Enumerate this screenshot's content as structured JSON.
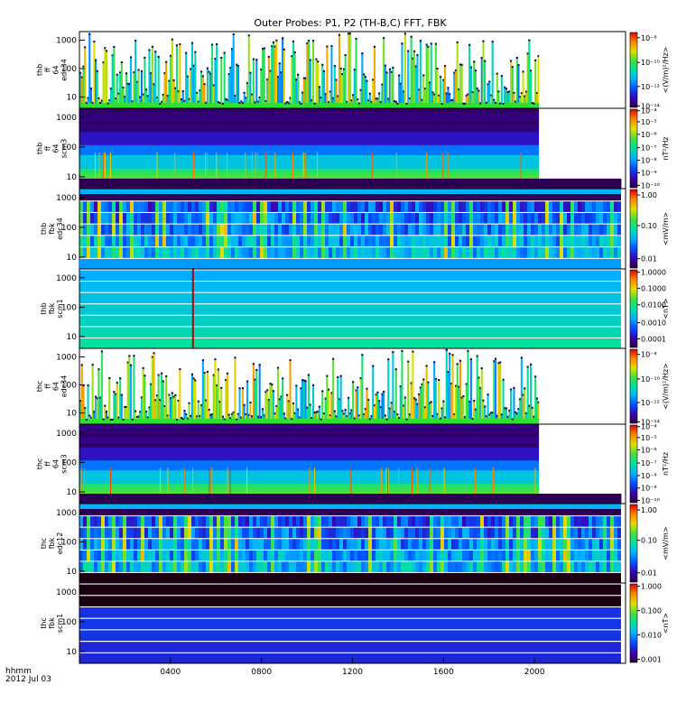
{
  "chart_data": {
    "type": "heatmap",
    "title": "Outer Probes: P1, P2 (TH-B,C) FFT, FBK",
    "xlabel": "hhmm",
    "date": "2012 Jul 03",
    "x_ticks": [
      "0400",
      "0800",
      "1200",
      "1600",
      "2000"
    ],
    "x_tick_hours": [
      4,
      8,
      12,
      16,
      20
    ],
    "x_range_hours": [
      0,
      24
    ],
    "y_ticks": [
      "10",
      "100",
      "1000"
    ],
    "y_tick_values": [
      10,
      100,
      1000
    ],
    "ylim": [
      4,
      2000
    ],
    "panels": [
      {
        "label": [
          "thb",
          "ff",
          "64",
          "edc34"
        ],
        "colorbar_label": "<(V/m)²/Hz>",
        "colorbar_ticks": [
          "10⁻⁸",
          "10⁻¹⁰",
          "10⁻¹²",
          "10⁻¹⁴"
        ],
        "colorbar_tick_fracs": [
          0.93,
          0.6,
          0.28,
          0.02
        ],
        "style": "spiky",
        "data_end_hour": 20.2
      },
      {
        "label": [
          "thb",
          "ff",
          "64",
          "scm3"
        ],
        "colorbar_label": "nT²/Hz",
        "colorbar_ticks": [
          "10⁻⁴",
          "10⁻⁵",
          "10⁻⁶",
          "10⁻⁷",
          "10⁻⁸",
          "10⁻⁹",
          "10⁻¹⁰"
        ],
        "colorbar_tick_fracs": [
          0.98,
          0.84,
          0.68,
          0.51,
          0.35,
          0.19,
          0.03
        ],
        "style": "banded-scm",
        "data_end_hour": 20.2
      },
      {
        "label": [
          "thb",
          "fbk",
          "edc34"
        ],
        "colorbar_label": "<mV/m>",
        "colorbar_ticks": [
          "1.00",
          "0.10",
          "0.01"
        ],
        "colorbar_tick_fracs": [
          0.93,
          0.54,
          0.12
        ],
        "style": "fbk-e",
        "data_end_hour": 23.8
      },
      {
        "label": [
          "thb",
          "fbk",
          "scm1"
        ],
        "colorbar_label": "<nT>",
        "colorbar_ticks": [
          "1.0000",
          "0.1000",
          "0.0100",
          "0.0010",
          "0.0001"
        ],
        "colorbar_tick_fracs": [
          0.97,
          0.76,
          0.55,
          0.32,
          0.11
        ],
        "style": "fbk-b-green",
        "data_end_hour": 23.8
      },
      {
        "label": [
          "thc",
          "ff",
          "64",
          "edc34"
        ],
        "colorbar_label": "<(V/m)²/Hz>",
        "colorbar_ticks": [
          "10⁻⁸",
          "10⁻¹⁰",
          "10⁻¹²",
          "10⁻¹⁴"
        ],
        "colorbar_tick_fracs": [
          0.93,
          0.6,
          0.28,
          0.02
        ],
        "style": "spiky",
        "data_end_hour": 20.2
      },
      {
        "label": [
          "thc",
          "ff",
          "64",
          "scm3"
        ],
        "colorbar_label": "nT²/Hz",
        "colorbar_ticks": [
          "10⁻⁴",
          "10⁻⁵",
          "10⁻⁶",
          "10⁻⁷",
          "10⁻⁸",
          "10⁻⁹",
          "10⁻¹⁰"
        ],
        "colorbar_tick_fracs": [
          0.98,
          0.84,
          0.68,
          0.51,
          0.35,
          0.19,
          0.03
        ],
        "style": "banded-scm",
        "data_end_hour": 20.2
      },
      {
        "label": [
          "thc",
          "fbk",
          "edc12"
        ],
        "colorbar_label": "<mV/m>",
        "colorbar_ticks": [
          "1.00",
          "0.10",
          "0.01"
        ],
        "colorbar_tick_fracs": [
          0.93,
          0.54,
          0.12
        ],
        "style": "fbk-e",
        "data_end_hour": 23.8
      },
      {
        "label": [
          "thc",
          "fbk",
          "scm1"
        ],
        "colorbar_label": "<nT>",
        "colorbar_ticks": [
          "1.000",
          "0.100",
          "0.010",
          "0.001"
        ],
        "colorbar_tick_fracs": [
          0.97,
          0.66,
          0.35,
          0.04
        ],
        "style": "fbk-b-dark",
        "data_end_hour": 23.8
      }
    ]
  }
}
